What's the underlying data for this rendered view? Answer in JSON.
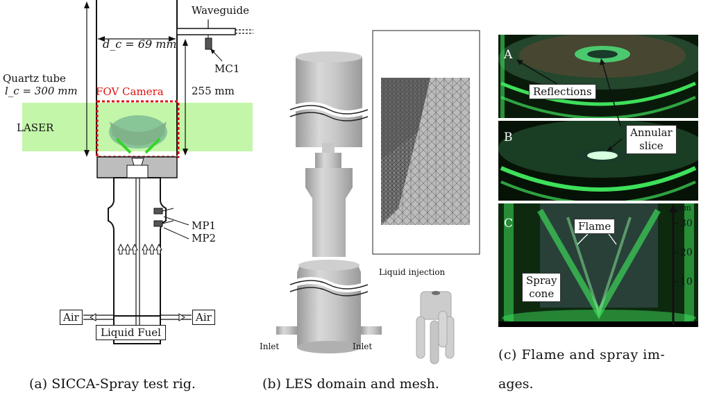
{
  "panel_a": {
    "waveguide": "Waveguide",
    "dc_label": "d_c = 69 mm",
    "mc1": "MC1",
    "quartz_tube": "Quartz tube",
    "lc_label": "l_c = 300 mm",
    "fov_camera": "FOV Camera",
    "height_255": "255 mm",
    "laser": "LASER",
    "mp1": "MP1",
    "mp2": "MP2",
    "air_left": "Air",
    "air_right": "Air",
    "liquid_fuel": "Liquid Fuel",
    "caption": "(a) SICCA-Spray test rig."
  },
  "panel_b": {
    "liquid_injection": "Liquid injection",
    "inlet_left": "Inlet",
    "inlet_right": "Inlet",
    "caption": "(b) LES domain and mesh."
  },
  "panel_c": {
    "label_a": "A",
    "label_b": "B",
    "label_c": "C",
    "reflections": "Reflections",
    "annular_slice_1": "Annular",
    "annular_slice_2": "slice",
    "flame": "Flame",
    "spray_1": "Spray",
    "spray_2": "cone",
    "unit": "mm",
    "tick_30": "30",
    "tick_20": "20",
    "tick_10": "10",
    "caption_1": "(c) Flame and spray im-",
    "caption_2": "ages."
  },
  "colors": {
    "laser_green": "#b9f59a",
    "fov_red": "#e01010",
    "flame_green": "#3ee05a",
    "mesh_gray": "#8a8a8a"
  }
}
